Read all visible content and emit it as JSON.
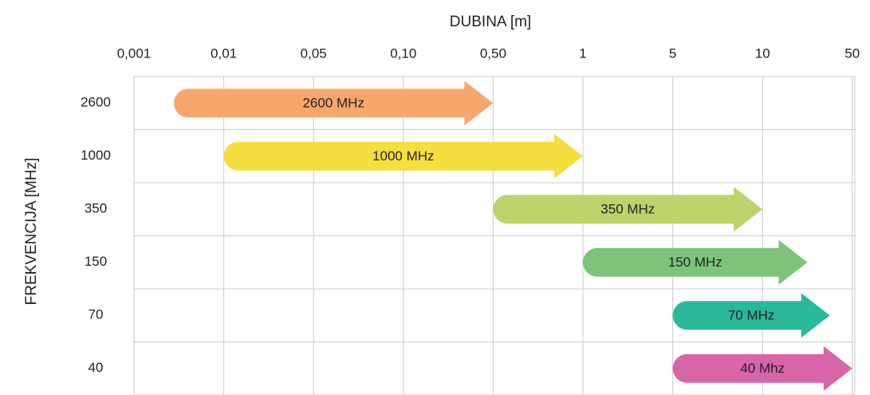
{
  "chart_data": {
    "type": "arrow_range",
    "x_label": "DUBINA [m]",
    "y_label": "FREKVENCIJA [MHz]",
    "xticks": [
      {
        "value": 0.001,
        "label": "0,001"
      },
      {
        "value": 0.01,
        "label": "0,01"
      },
      {
        "value": 0.05,
        "label": "0,05"
      },
      {
        "value": 0.1,
        "label": "0,10"
      },
      {
        "value": 0.5,
        "label": "0,50"
      },
      1,
      5,
      10,
      50
    ],
    "categories": [
      "2600",
      "1000",
      "350",
      "150",
      "70",
      "40"
    ],
    "series": [
      {
        "name": "2600 MHz",
        "color": "#f7a76c",
        "start": 0.005,
        "end": 0.5
      },
      {
        "name": "1000 MHz",
        "color": "#f5df3e",
        "start": 0.01,
        "end": 1
      },
      {
        "name": "350 MHz",
        "color": "#bcd36a",
        "start": 0.5,
        "end": 10
      },
      {
        "name": "150 MHz",
        "color": "#7dc47a",
        "start": 1,
        "end": 30
      },
      {
        "name": "70 MHz",
        "color": "#2ab89b",
        "start": 5,
        "end": 40
      },
      {
        "name": "40 Mhz",
        "color": "#d865a9",
        "start": 5,
        "end": 50
      }
    ],
    "grid": true
  }
}
